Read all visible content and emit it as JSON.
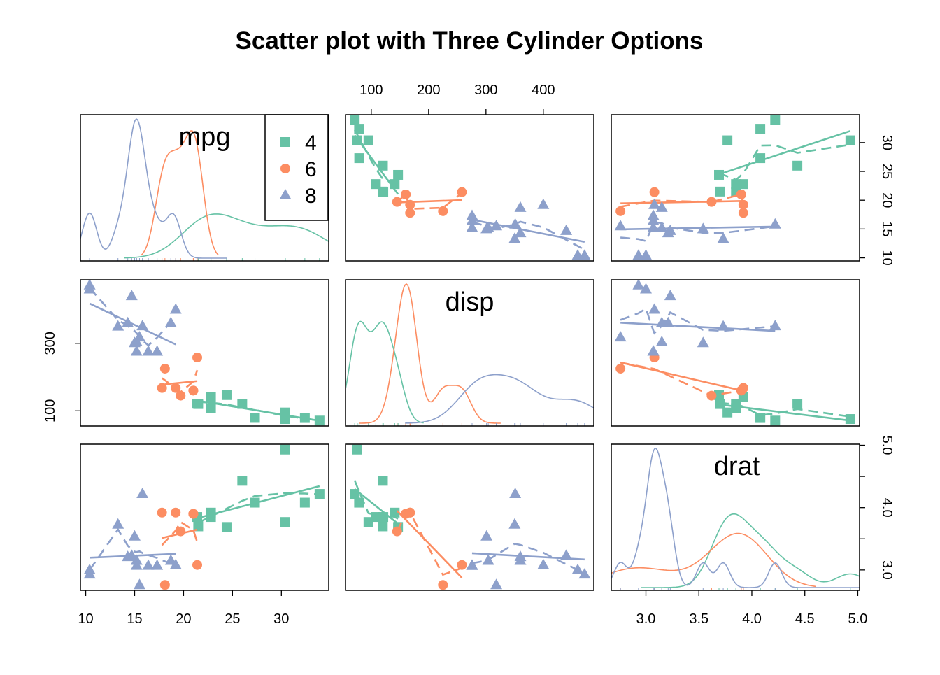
{
  "chart_data": {
    "type": "scatter",
    "title": "Scatter plot with Three Cylinder Options",
    "variables": [
      "mpg",
      "disp",
      "drat"
    ],
    "legend": {
      "position": "top-right of mpg diagonal panel",
      "entries": [
        "4",
        "6",
        "8"
      ]
    },
    "groups": [
      {
        "name": "4",
        "color": "#66C2A5",
        "marker": "square"
      },
      {
        "name": "6",
        "color": "#FC8D62",
        "marker": "circle"
      },
      {
        "name": "8",
        "color": "#8DA0CB",
        "marker": "triangle"
      }
    ],
    "axis_ticks": {
      "mpg": [
        10,
        15,
        20,
        25,
        30
      ],
      "disp_top": [
        100,
        200,
        300,
        400
      ],
      "disp_left": [
        100,
        300
      ],
      "drat": [
        "3.0",
        "3.5",
        "4.0",
        "4.5",
        "5.0"
      ],
      "drat_right": [
        "3.0",
        "4.0",
        "5.0"
      ]
    },
    "points": [
      {
        "g": "6",
        "mpg": 21.0,
        "disp": 160,
        "drat": 3.9
      },
      {
        "g": "6",
        "mpg": 21.0,
        "disp": 160,
        "drat": 3.9
      },
      {
        "g": "4",
        "mpg": 22.8,
        "disp": 108,
        "drat": 3.85
      },
      {
        "g": "6",
        "mpg": 21.4,
        "disp": 258,
        "drat": 3.08
      },
      {
        "g": "8",
        "mpg": 18.7,
        "disp": 360,
        "drat": 3.15
      },
      {
        "g": "6",
        "mpg": 18.1,
        "disp": 225,
        "drat": 2.76
      },
      {
        "g": "8",
        "mpg": 14.3,
        "disp": 360,
        "drat": 3.21
      },
      {
        "g": "4",
        "mpg": 24.4,
        "disp": 146.7,
        "drat": 3.69
      },
      {
        "g": "4",
        "mpg": 22.8,
        "disp": 140.8,
        "drat": 3.92
      },
      {
        "g": "6",
        "mpg": 19.2,
        "disp": 167.6,
        "drat": 3.92
      },
      {
        "g": "6",
        "mpg": 17.8,
        "disp": 167.6,
        "drat": 3.92
      },
      {
        "g": "8",
        "mpg": 16.4,
        "disp": 275.8,
        "drat": 3.07
      },
      {
        "g": "8",
        "mpg": 17.3,
        "disp": 275.8,
        "drat": 3.07
      },
      {
        "g": "8",
        "mpg": 15.2,
        "disp": 275.8,
        "drat": 3.07
      },
      {
        "g": "8",
        "mpg": 10.4,
        "disp": 472,
        "drat": 2.93
      },
      {
        "g": "8",
        "mpg": 10.4,
        "disp": 460,
        "drat": 3.0
      },
      {
        "g": "8",
        "mpg": 14.7,
        "disp": 440,
        "drat": 3.23
      },
      {
        "g": "4",
        "mpg": 32.4,
        "disp": 78.7,
        "drat": 4.08
      },
      {
        "g": "4",
        "mpg": 30.4,
        "disp": 75.7,
        "drat": 4.93
      },
      {
        "g": "4",
        "mpg": 33.9,
        "disp": 71.1,
        "drat": 4.22
      },
      {
        "g": "4",
        "mpg": 21.5,
        "disp": 120.1,
        "drat": 3.7
      },
      {
        "g": "8",
        "mpg": 15.5,
        "disp": 318,
        "drat": 2.76
      },
      {
        "g": "8",
        "mpg": 15.2,
        "disp": 304,
        "drat": 3.15
      },
      {
        "g": "8",
        "mpg": 13.3,
        "disp": 350,
        "drat": 3.73
      },
      {
        "g": "8",
        "mpg": 19.2,
        "disp": 400,
        "drat": 3.08
      },
      {
        "g": "4",
        "mpg": 27.3,
        "disp": 79,
        "drat": 4.08
      },
      {
        "g": "4",
        "mpg": 26.0,
        "disp": 120.3,
        "drat": 4.43
      },
      {
        "g": "4",
        "mpg": 30.4,
        "disp": 95.1,
        "drat": 3.77
      },
      {
        "g": "8",
        "mpg": 15.8,
        "disp": 351,
        "drat": 4.22
      },
      {
        "g": "6",
        "mpg": 19.7,
        "disp": 145,
        "drat": 3.62
      },
      {
        "g": "8",
        "mpg": 15.0,
        "disp": 301,
        "drat": 3.54
      },
      {
        "g": "4",
        "mpg": 21.4,
        "disp": 121,
        "drat": 3.85
      }
    ]
  }
}
